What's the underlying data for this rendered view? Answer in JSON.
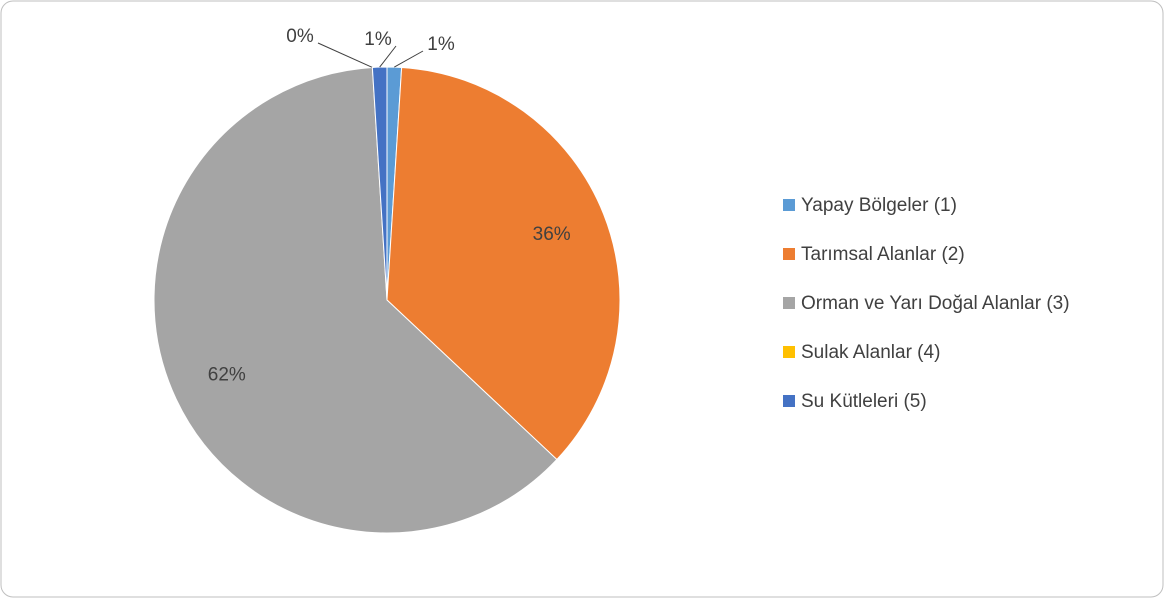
{
  "chart_data": {
    "type": "pie",
    "categories": [
      "Yapay Bölgeler (1)",
      "Tarımsal Alanlar (2)",
      "Orman ve Yarı Doğal Alanlar (3)",
      "Sulak Alanlar (4)",
      "Su Kütleleri (5)"
    ],
    "values": [
      1,
      36,
      62,
      0,
      1
    ],
    "value_labels": [
      "1%",
      "36%",
      "62%",
      "0%",
      "1%"
    ],
    "colors": [
      "#5b9bd5",
      "#ed7d31",
      "#a5a5a5",
      "#ffc000",
      "#4472c4"
    ],
    "legend": "right"
  }
}
